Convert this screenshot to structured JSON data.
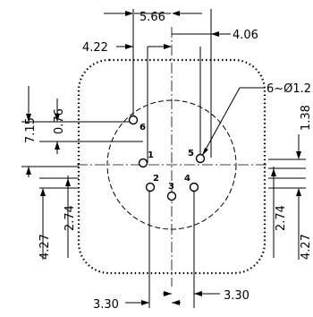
{
  "dimensions": {
    "top_span": "5.66",
    "left_offset": "4.22",
    "right_offset": "4.06",
    "callout": "6~Ø1.2",
    "left_076": "0.76",
    "left_715": "7.15",
    "left_274": "2.74",
    "left_427": "4.27",
    "right_274": "2.74",
    "right_427": "4.27",
    "right_partial": "1.38",
    "bottom_left": "3.30",
    "bottom_right": "3.30"
  },
  "pins": [
    "1",
    "2",
    "3",
    "4",
    "5",
    "6"
  ]
}
